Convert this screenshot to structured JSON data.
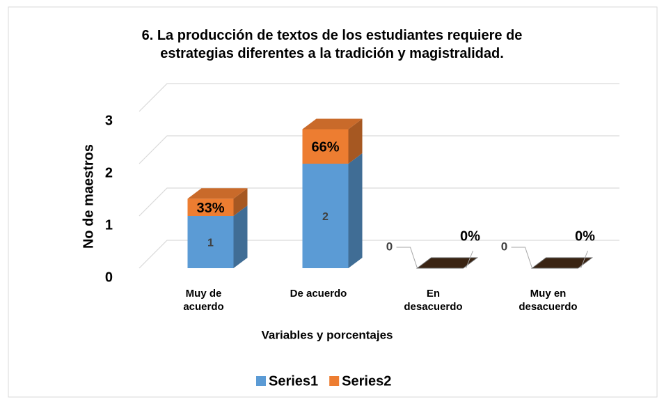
{
  "chart_data": {
    "type": "bar3d_stacked",
    "title": "6. La producción de textos de los estudiantes requiere de estrategias diferentes a la tradición y magistralidad.",
    "xlabel": "Variables y porcentajes",
    "ylabel": "No de maestros",
    "categories": [
      "Muy de acuerdo",
      "De acuerdo",
      "En desacuerdo",
      "Muy en desacuerdo"
    ],
    "series": [
      {
        "name": "Series1",
        "color": "#5b9bd5",
        "values": [
          1,
          2,
          0,
          0
        ]
      },
      {
        "name": "Series2",
        "color": "#ed7d31",
        "values": [
          0.33,
          0.66,
          0,
          0
        ],
        "value_labels": [
          "33%",
          "66%",
          "0%",
          "0%"
        ]
      }
    ],
    "ylim": [
      0,
      3
    ],
    "yticks": [
      0,
      1,
      2,
      3
    ],
    "grid": true,
    "legend": "bottom"
  }
}
